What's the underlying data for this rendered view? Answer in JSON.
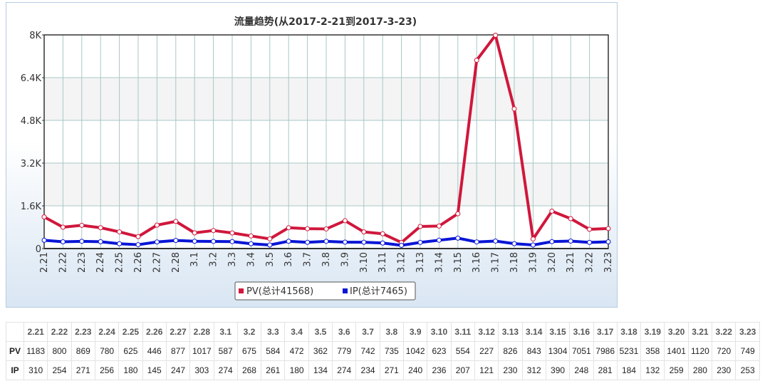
{
  "chart_data": {
    "type": "line",
    "title": "流量趋势(从2017-2-21到2017-3-23)",
    "categories": [
      "2.21",
      "2.22",
      "2.23",
      "2.24",
      "2.25",
      "2.26",
      "2.27",
      "2.28",
      "3.1",
      "3.2",
      "3.3",
      "3.4",
      "3.5",
      "3.6",
      "3.7",
      "3.8",
      "3.9",
      "3.10",
      "3.11",
      "3.12",
      "3.13",
      "3.14",
      "3.15",
      "3.16",
      "3.17",
      "3.18",
      "3.19",
      "3.20",
      "3.21",
      "3.22",
      "3.23"
    ],
    "yticks": [
      "0",
      "1.6K",
      "3.2K",
      "4.8K",
      "6.4K",
      "8K"
    ],
    "ylim": [
      0,
      8000
    ],
    "grid": true,
    "legend_position": "bottom-center",
    "series": [
      {
        "name": "PV",
        "legend_label": "PV(总计41568)",
        "color": "#d0173c",
        "values": [
          1183,
          800,
          869,
          780,
          625,
          446,
          877,
          1017,
          587,
          675,
          584,
          472,
          362,
          779,
          742,
          735,
          1042,
          623,
          554,
          227,
          826,
          843,
          1304,
          7051,
          7986,
          5231,
          358,
          1401,
          1120,
          720,
          749
        ]
      },
      {
        "name": "IP",
        "legend_label": "IP(总计7465)",
        "color": "#0a16d6",
        "values": [
          310,
          254,
          271,
          256,
          180,
          145,
          247,
          303,
          274,
          268,
          261,
          180,
          134,
          274,
          234,
          271,
          240,
          236,
          207,
          121,
          230,
          312,
          390,
          248,
          281,
          184,
          132,
          259,
          280,
          230,
          253
        ]
      }
    ]
  }
}
